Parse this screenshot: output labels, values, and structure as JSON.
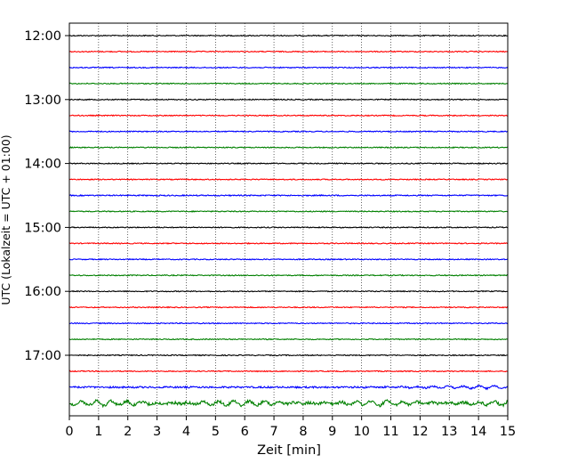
{
  "chart_data": {
    "type": "line",
    "title": "",
    "xlabel": "Zeit  [min]",
    "ylabel": "UTC (Lokalzeit = UTC + 01:00)",
    "xlim": [
      0,
      15
    ],
    "x_ticks": [
      "0",
      "1",
      "2",
      "3",
      "4",
      "5",
      "6",
      "7",
      "8",
      "9",
      "10",
      "11",
      "12",
      "13",
      "14",
      "15"
    ],
    "y_ticks": [
      "12:00",
      "13:00",
      "14:00",
      "15:00",
      "16:00",
      "17:00"
    ],
    "grid": "vertical-dotted",
    "trace_interval_min": 15,
    "trace_colors": [
      "#000000",
      "#ff0000",
      "#0000ff",
      "#008000"
    ],
    "traces": [
      {
        "start": "12:00",
        "amplitude": 0.35
      },
      {
        "start": "12:15",
        "amplitude": 0.35
      },
      {
        "start": "12:30",
        "amplitude": 0.35
      },
      {
        "start": "12:45",
        "amplitude": 0.35
      },
      {
        "start": "13:00",
        "amplitude": 0.35
      },
      {
        "start": "13:15",
        "amplitude": 0.35
      },
      {
        "start": "13:30",
        "amplitude": 0.35
      },
      {
        "start": "13:45",
        "amplitude": 0.35
      },
      {
        "start": "14:00",
        "amplitude": 0.35
      },
      {
        "start": "14:15",
        "amplitude": 0.35
      },
      {
        "start": "14:30",
        "amplitude": 0.4
      },
      {
        "start": "14:45",
        "amplitude": 0.35
      },
      {
        "start": "15:00",
        "amplitude": 0.35
      },
      {
        "start": "15:15",
        "amplitude": 0.35
      },
      {
        "start": "15:30",
        "amplitude": 0.35
      },
      {
        "start": "15:45",
        "amplitude": 0.35
      },
      {
        "start": "16:00",
        "amplitude": 0.35
      },
      {
        "start": "16:15",
        "amplitude": 0.35
      },
      {
        "start": "16:30",
        "amplitude": 0.35
      },
      {
        "start": "16:45",
        "amplitude": 0.35
      },
      {
        "start": "17:00",
        "amplitude": 0.35
      },
      {
        "start": "17:15",
        "amplitude": 0.35
      },
      {
        "start": "17:30",
        "amplitude": 0.6
      },
      {
        "start": "17:45",
        "amplitude": 1.0
      }
    ]
  }
}
